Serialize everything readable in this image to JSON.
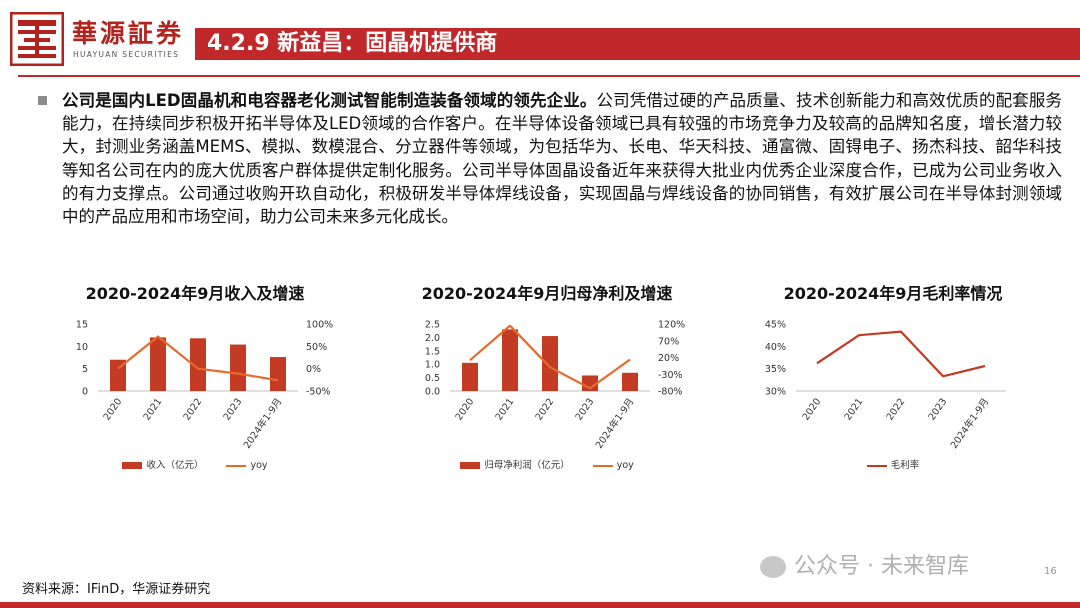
{
  "header": {
    "logo_name": "華源証券",
    "logo_sub": "HUAYUAN SECURITIES",
    "title": "4.2.9 新益昌：固晶机提供商"
  },
  "body": {
    "bold": "公司是国内LED固晶机和电容器老化测试智能制造装备领域的领先企业。",
    "rest": "公司凭借过硬的产品质量、技术创新能力和高效优质的配套服务能力，在持续同步积极开拓半导体及LED领域的合作客户。在半导体设备领域已具有较强的市场竞争力及较高的品牌知名度，增长潜力较大，封测业务涵盖MEMS、模拟、数模混合、分立器件等领域，为包括华为、长电、华天科技、通富微、固锝电子、扬杰科技、韶华科技等知名公司在内的庞大优质客户群体提供定制化服务。公司半导体固晶设备近年来获得大批业内优秀企业深度合作，已成为公司业务收入的有力支撑点。公司通过收购开玖自动化，积极研发半导体焊线设备，实现固晶与焊线设备的协同销售，有效扩展公司在半导体封测领域中的产品应用和市场空间，助力公司未来多元化成长。"
  },
  "footer": {
    "source": "资料来源：IFinD，华源证券研究",
    "watermark": "公众号 · 未来智库",
    "page": "16"
  },
  "colors": {
    "brand_red": "#c0282a",
    "bar": "#c23b22",
    "line": "#e66b2a"
  },
  "chart_data": [
    {
      "type": "bar",
      "title": "2020-2024年9月收入及增速",
      "categories": [
        "2020",
        "2021",
        "2022",
        "2023",
        "2024年1-9月"
      ],
      "series": [
        {
          "name": "收入（亿元）",
          "type": "bar",
          "axis": "left",
          "values": [
            7.0,
            12.0,
            11.8,
            10.4,
            7.6
          ]
        },
        {
          "name": "yoy",
          "type": "line",
          "axis": "right",
          "values": [
            0.0,
            72,
            0.0,
            -11,
            -26
          ]
        }
      ],
      "y_left": {
        "ylim": [
          0,
          15
        ],
        "ticks": [
          "0",
          "5",
          "10",
          "15"
        ],
        "tick_values": [
          0,
          5,
          10,
          15
        ]
      },
      "y_right": {
        "ylim": [
          -50,
          100
        ],
        "ticks": [
          "-50%",
          "0%",
          "50%",
          "100%"
        ],
        "tick_values": [
          -50,
          0,
          50,
          100
        ]
      },
      "legend": [
        "收入（亿元）",
        "yoy"
      ]
    },
    {
      "type": "bar",
      "title": "2020-2024年9月归母净利及增速",
      "categories": [
        "2020",
        "2021",
        "2022",
        "2023",
        "2024年1-9月"
      ],
      "series": [
        {
          "name": "归母净利润（亿元）",
          "type": "bar",
          "axis": "left",
          "values": [
            1.05,
            2.3,
            2.05,
            0.58,
            0.68
          ]
        },
        {
          "name": "yoy",
          "type": "line",
          "axis": "right",
          "values": [
            12,
            115,
            -9,
            -72,
            14
          ]
        }
      ],
      "y_left": {
        "ylim": [
          0,
          2.5
        ],
        "ticks": [
          "0.0",
          "0.5",
          "1.0",
          "1.5",
          "2.0",
          "2.5"
        ],
        "tick_values": [
          0,
          0.5,
          1.0,
          1.5,
          2.0,
          2.5
        ]
      },
      "y_right": {
        "ylim": [
          -80,
          120
        ],
        "ticks": [
          "-80%",
          "-30%",
          "20%",
          "70%",
          "120%"
        ],
        "tick_values": [
          -80,
          -30,
          20,
          70,
          120
        ]
      },
      "legend": [
        "归母净利润（亿元）",
        "yoy"
      ]
    },
    {
      "type": "line",
      "title": "2020-2024年9月毛利率情况",
      "categories": [
        "2020",
        "2021",
        "2022",
        "2023",
        "2024年1-9月"
      ],
      "series": [
        {
          "name": "毛利率",
          "type": "line",
          "axis": "left",
          "values": [
            36.2,
            42.5,
            43.3,
            33.3,
            35.6
          ]
        }
      ],
      "y_left": {
        "ylim": [
          30,
          45
        ],
        "ticks": [
          "30%",
          "35%",
          "40%",
          "45%"
        ],
        "tick_values": [
          30,
          35,
          40,
          45
        ]
      },
      "legend": [
        "毛利率"
      ]
    }
  ]
}
